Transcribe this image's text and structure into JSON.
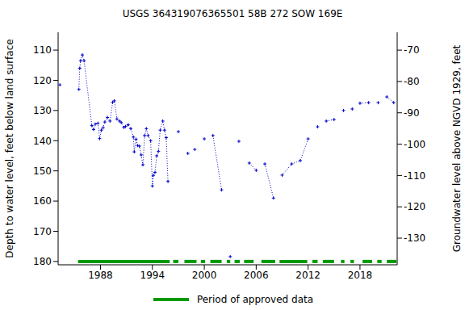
{
  "chart_data": {
    "type": "line",
    "title": "USGS 364319076365501 58B 272 SOW 169E",
    "ylabel": "Depth to water level, feet below land surface",
    "y2label": "Groundwater level above NGVD 1929, feet",
    "xlim": [
      1983.1,
      2022.3
    ],
    "xticks": [
      1988,
      1994,
      2000,
      2006,
      2012,
      2018
    ],
    "ylim": [
      104.1,
      181.1
    ],
    "yticks": [
      110,
      120,
      130,
      140,
      150,
      160,
      170,
      180
    ],
    "y2lim": [
      -138.5,
      -64.3
    ],
    "y2ticks": [
      -70,
      -80,
      -90,
      -100,
      -110,
      -120,
      -130
    ],
    "color": "#0000cc",
    "marker": "plus",
    "line_style": "dotted",
    "x": [
      1983.3,
      1984.4,
      1985.5,
      1985.6,
      1985.7,
      1985.9,
      1986.1,
      1987.0,
      1987.2,
      1987.4,
      1987.7,
      1987.9,
      1988.1,
      1988.3,
      1988.5,
      1988.8,
      1989.1,
      1989.4,
      1989.6,
      1989.9,
      1990.2,
      1990.4,
      1990.7,
      1990.9,
      1991.2,
      1991.5,
      1991.8,
      1991.9,
      1992.1,
      1992.3,
      1992.5,
      1992.7,
      1992.9,
      1993.1,
      1993.3,
      1993.5,
      1993.8,
      1994.0,
      1994.1,
      1994.3,
      1994.5,
      1994.7,
      1994.9,
      1995.2,
      1995.4,
      1995.6,
      1995.8,
      1996.4,
      1997.0,
      1997.6,
      1998.1,
      1998.5,
      1998.9,
      1999.5,
      2000.0,
      2000.5,
      2001.0,
      2002.0,
      2002.5,
      2003.0,
      2003.5,
      2004.0,
      2004.6,
      2005.2,
      2006.0,
      2006.5,
      2007.0,
      2008.0,
      2008.5,
      2009.0,
      2010.1,
      2011.1,
      2012.0,
      2012.5,
      2013.1,
      2013.6,
      2014.1,
      2015.0,
      2015.5,
      2016.1,
      2016.6,
      2017.1,
      2017.5,
      2018.0,
      2019.0,
      2019.5,
      2020.1,
      2020.6,
      2021.1,
      2021.9
    ],
    "values": [
      121.5,
      null,
      123,
      116,
      113.5,
      111.6,
      113.5,
      135,
      136.3,
      134.5,
      134.2,
      139.3,
      136.5,
      135.7,
      133.8,
      132.3,
      133.5,
      127.3,
      126.8,
      132.8,
      133.5,
      134,
      135.6,
      135.3,
      134.7,
      136,
      138.8,
      143.7,
      139.5,
      141.6,
      141.8,
      144.7,
      148,
      138.3,
      136,
      138.3,
      140,
      155,
      151.5,
      150.5,
      145,
      143.5,
      136.5,
      133.5,
      136.5,
      139,
      153.5,
      null,
      137,
      null,
      144.2,
      null,
      142.9,
      null,
      139.4,
      null,
      138.3,
      156.3,
      null,
      178.4,
      null,
      140.2,
      null,
      147.4,
      149.8,
      null,
      147.7,
      159,
      null,
      151.4,
      147.7,
      146.6,
      139.4,
      null,
      135.4,
      null,
      133.5,
      133,
      null,
      130,
      null,
      129.5,
      null,
      127.6,
      127.4,
      null,
      127.4,
      null,
      125.5,
      127.4
    ],
    "approved_data": {
      "label": "Period of approved data",
      "color": "#009900",
      "periods": [
        [
          1985.4,
          1996.0
        ],
        [
          1996.4,
          1997.0
        ],
        [
          1997.7,
          1999.1
        ],
        [
          1999.6,
          2000.1
        ],
        [
          2000.7,
          2002.0
        ],
        [
          2002.6,
          2003.0
        ],
        [
          2003.5,
          2004.1
        ],
        [
          2004.6,
          2005.7
        ],
        [
          2006.6,
          2008.2
        ],
        [
          2008.7,
          2011.9
        ],
        [
          2012.5,
          2013.1
        ],
        [
          2013.7,
          2015.0
        ],
        [
          2015.8,
          2016.2
        ],
        [
          2016.9,
          2017.3
        ],
        [
          2018.3,
          2019.4
        ],
        [
          2020.0,
          2020.5
        ],
        [
          2021.1,
          2022.2
        ]
      ]
    }
  }
}
